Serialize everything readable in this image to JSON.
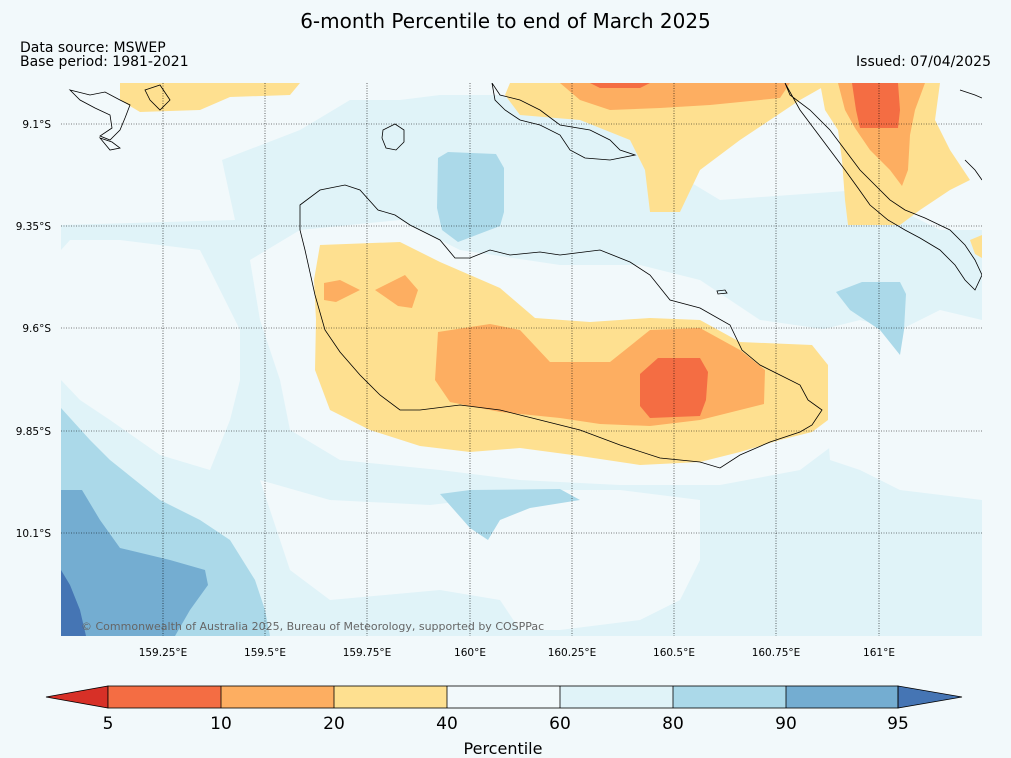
{
  "title": "6-month Percentile to end of March 2025",
  "data_source": "Data source: MSWEP",
  "base_period": "Base period: 1981-2021",
  "issued": "Issued: 07/04/2025",
  "latitude_labels": [
    "9.1°S",
    "9.35°S",
    "9.6°S",
    "9.85°S",
    "10.1°S"
  ],
  "longitude_labels": [
    "159.25°E",
    "159.5°E",
    "159.75°E",
    "160°E",
    "160.25°E",
    "160.5°E",
    "160.75°E",
    "161°E"
  ],
  "copyright": "© Commonwealth of Australia 2025, Bureau of Meteorology, supported by COSPPac",
  "colorbar": {
    "label": "Percentile",
    "ticks": [
      "5",
      "10",
      "20",
      "40",
      "60",
      "80",
      "90",
      "95"
    ],
    "colors": {
      "below_5": "#d73027",
      "p5_10": "#f46d43",
      "p10_20": "#fdae61",
      "p20_40": "#fee090",
      "p40_60": "#f2f9fb",
      "p60_80": "#e0f3f8",
      "p80_90": "#abd9e9",
      "p90_95": "#74add1",
      "above_95": "#4575b4"
    }
  }
}
